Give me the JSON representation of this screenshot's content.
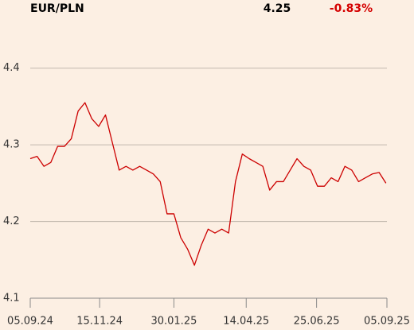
{
  "chart_data": {
    "type": "line",
    "title": "EUR/PLN",
    "last": 4.25,
    "change": "-0.83%",
    "x": [
      "05.09.24",
      "12.09.24",
      "19.09.24",
      "26.09.24",
      "03.10.24",
      "10.10.24",
      "17.10.24",
      "24.10.24",
      "31.10.24",
      "07.11.24",
      "14.11.24",
      "21.11.24",
      "28.11.24",
      "05.12.24",
      "12.12.24",
      "19.12.24",
      "26.12.24",
      "02.01.25",
      "09.01.25",
      "16.01.25",
      "23.01.25",
      "30.01.25",
      "06.02.25",
      "13.02.25",
      "20.02.25",
      "27.02.25",
      "06.03.25",
      "13.03.25",
      "20.03.25",
      "27.03.25",
      "03.04.25",
      "10.04.25",
      "17.04.25",
      "24.04.25",
      "01.05.25",
      "08.05.25",
      "15.05.25",
      "22.05.25",
      "29.05.25",
      "05.06.25",
      "12.06.25",
      "19.06.25",
      "26.06.25",
      "03.07.25",
      "10.07.25",
      "17.07.25",
      "24.07.25",
      "31.07.25",
      "07.08.25",
      "14.08.25",
      "21.08.25",
      "28.08.25",
      "04.09.25"
    ],
    "series": [
      {
        "name": "EUR/PLN",
        "color": "#cc0000",
        "values": [
          4.282,
          4.285,
          4.272,
          4.277,
          4.298,
          4.298,
          4.308,
          4.344,
          4.355,
          4.334,
          4.324,
          4.339,
          4.303,
          4.267,
          4.272,
          4.267,
          4.272,
          4.267,
          4.262,
          4.252,
          4.21,
          4.21,
          4.179,
          4.164,
          4.143,
          4.169,
          4.19,
          4.185,
          4.19,
          4.185,
          4.252,
          4.288,
          4.282,
          4.277,
          4.272,
          4.241,
          4.252,
          4.252,
          4.267,
          4.282,
          4.272,
          4.267,
          4.246,
          4.246,
          4.257,
          4.252,
          4.272,
          4.267,
          4.252,
          4.257,
          4.262,
          4.264,
          4.25
        ]
      }
    ],
    "xlim": [
      "05.09.24",
      "05.09.25"
    ],
    "xticks": [
      "05.09.24",
      "15.11.24",
      "30.01.25",
      "14.04.25",
      "25.06.25",
      "05.09.25"
    ],
    "ylim": [
      4.1,
      4.45
    ],
    "yticks": [
      4.1,
      4.2,
      4.3,
      4.4
    ],
    "grid": true
  }
}
